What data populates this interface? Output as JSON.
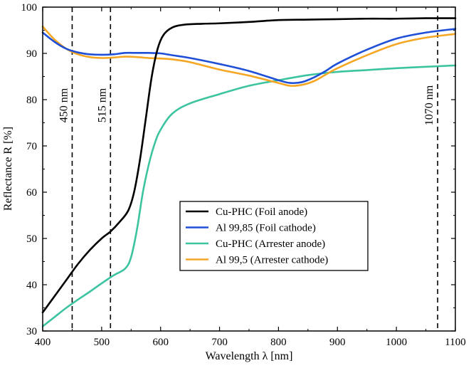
{
  "chart_data": {
    "type": "line",
    "xlabel": "Wavelength λ [nm]",
    "ylabel": "Reflectance R [%]",
    "xlim": [
      400,
      1100
    ],
    "ylim": [
      30,
      100
    ],
    "xticks": [
      400,
      500,
      600,
      700,
      800,
      900,
      1000,
      1100
    ],
    "yticks": [
      30,
      40,
      50,
      60,
      70,
      80,
      90,
      100
    ],
    "grid": false,
    "legend_position": "center-right",
    "annotations": [
      {
        "label": "450 nm",
        "x": 450
      },
      {
        "label": "515 nm",
        "x": 515
      },
      {
        "label": "1070 nm",
        "x": 1070
      }
    ],
    "series": [
      {
        "name": "Cu-PHC (Foil anode)",
        "color": "#000000",
        "x": [
          400,
          420,
          440,
          460,
          480,
          500,
          515,
          530,
          545,
          555,
          565,
          575,
          585,
          595,
          605,
          620,
          640,
          670,
          700,
          750,
          800,
          850,
          900,
          950,
          1000,
          1050,
          1100
        ],
        "y": [
          34,
          37.5,
          41,
          44.5,
          47.5,
          50,
          51.5,
          53.5,
          56,
          60,
          67,
          76,
          85,
          91,
          94,
          95.6,
          96.2,
          96.4,
          96.5,
          96.8,
          97.2,
          97.3,
          97.4,
          97.5,
          97.5,
          97.6,
          97.6
        ]
      },
      {
        "name": "Al 99,85 (Foil cathode)",
        "color": "#1f4fd6",
        "x": [
          400,
          420,
          440,
          460,
          480,
          500,
          520,
          540,
          560,
          580,
          600,
          620,
          650,
          700,
          750,
          800,
          820,
          840,
          860,
          880,
          900,
          950,
          1000,
          1050,
          1100
        ],
        "y": [
          94.5,
          92.5,
          91,
          90.2,
          89.8,
          89.7,
          89.8,
          90.1,
          90.1,
          90.1,
          90,
          89.6,
          89,
          87.7,
          86.2,
          84.2,
          83.6,
          83.8,
          84.8,
          86.2,
          87.8,
          90.8,
          93.2,
          94.5,
          95.3
        ]
      },
      {
        "name": "Cu-PHC (Arrester anode)",
        "color": "#3cc4a0",
        "x": [
          400,
          420,
          440,
          460,
          480,
          500,
          520,
          540,
          550,
          560,
          570,
          580,
          590,
          600,
          620,
          650,
          700,
          750,
          800,
          850,
          900,
          950,
          1000,
          1050,
          1100
        ],
        "y": [
          31,
          33,
          35,
          36.8,
          38.5,
          40.3,
          42,
          43.5,
          46,
          52,
          60,
          66,
          70.5,
          73.5,
          77,
          79.2,
          81.2,
          83,
          84.2,
          85.3,
          86,
          86.4,
          86.8,
          87.1,
          87.4
        ]
      },
      {
        "name": "Al 99,5 (Arrester cathode)",
        "color": "#f5a623",
        "x": [
          400,
          420,
          440,
          460,
          480,
          500,
          520,
          540,
          560,
          580,
          600,
          620,
          650,
          700,
          750,
          800,
          820,
          840,
          860,
          880,
          900,
          950,
          1000,
          1050,
          1100
        ],
        "y": [
          95.8,
          93,
          91,
          89.8,
          89.2,
          89,
          89.1,
          89.3,
          89.2,
          89,
          88.9,
          88.7,
          88.1,
          86.5,
          85.2,
          83.6,
          83,
          83.2,
          84,
          85.4,
          86.8,
          89.6,
          92,
          93.4,
          94.2
        ]
      }
    ]
  }
}
